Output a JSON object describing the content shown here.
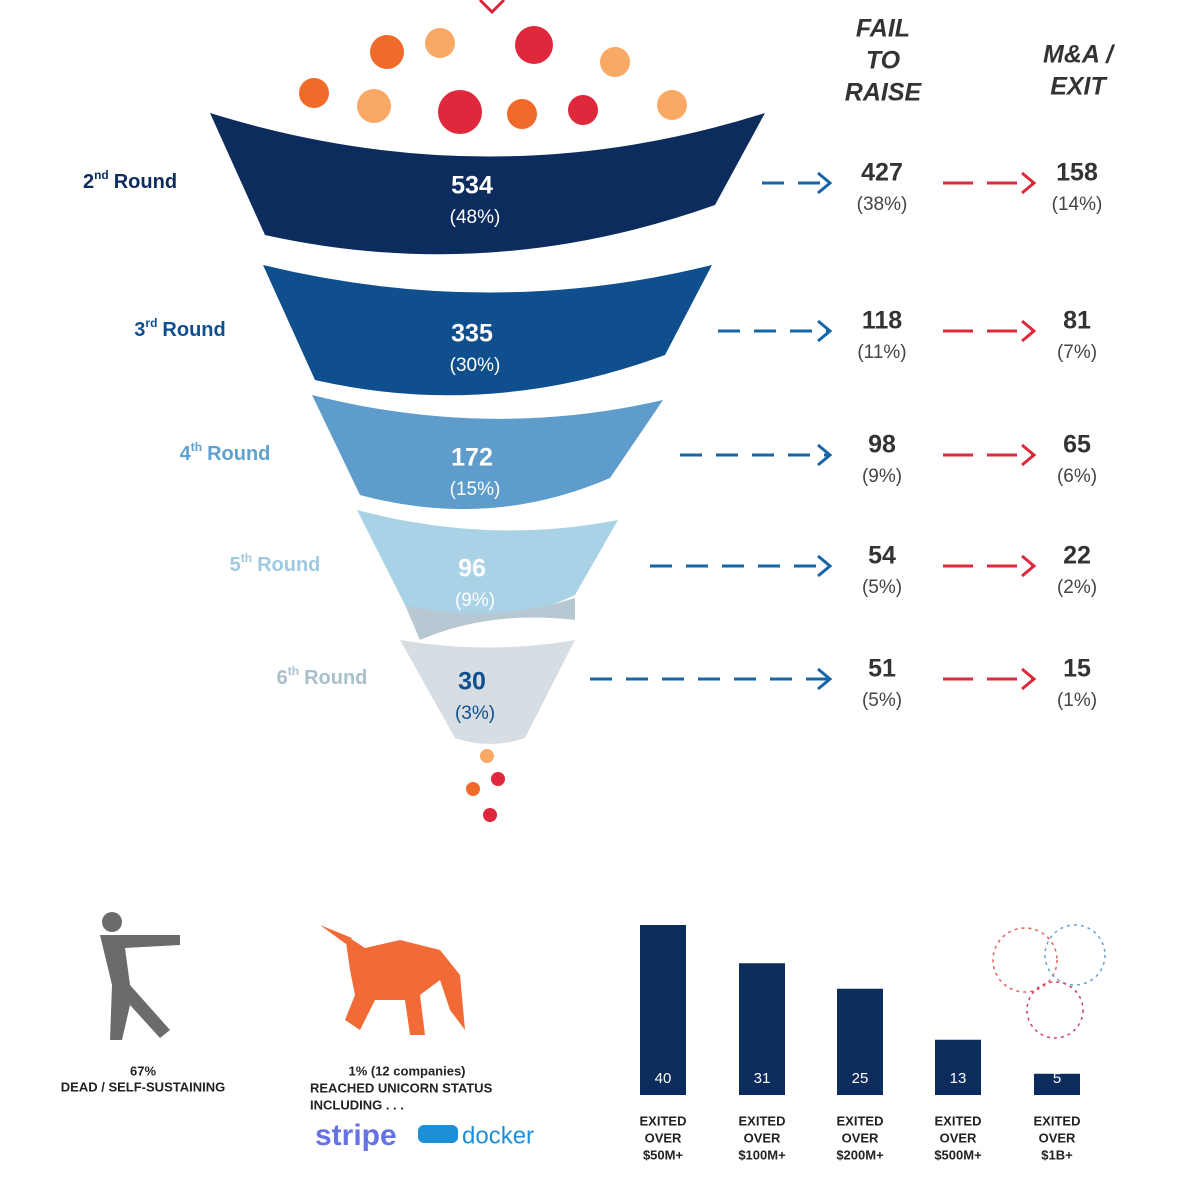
{
  "funnel": {
    "headers": {
      "fail": [
        "FAIL",
        "TO",
        "RAISE"
      ],
      "exit": [
        "M&A /",
        "EXIT"
      ]
    },
    "rows": [
      {
        "ordinal": "2",
        "suffix": "nd",
        "word": "Round",
        "count": 534,
        "share": "(48%)",
        "fail_count": 427,
        "fail_share": "(38%)",
        "exit_count": 158,
        "exit_share": "(14%)"
      },
      {
        "ordinal": "3",
        "suffix": "rd",
        "word": "Round",
        "count": 335,
        "share": "(30%)",
        "fail_count": 118,
        "fail_share": "(11%)",
        "exit_count": 81,
        "exit_share": "(7%)"
      },
      {
        "ordinal": "4",
        "suffix": "th",
        "word": "Round",
        "count": 172,
        "share": "(15%)",
        "fail_count": 98,
        "fail_share": "(9%)",
        "exit_count": 65,
        "exit_share": "(6%)"
      },
      {
        "ordinal": "5",
        "suffix": "th",
        "word": "Round",
        "count": 96,
        "share": "(9%)",
        "fail_count": 54,
        "fail_share": "(5%)",
        "exit_count": 22,
        "exit_share": "(2%)"
      },
      {
        "ordinal": "6",
        "suffix": "th",
        "word": "Round",
        "count": 30,
        "share": "(3%)",
        "fail_count": 51,
        "fail_share": "(5%)",
        "exit_count": 15,
        "exit_share": "(1%)"
      }
    ]
  },
  "outcomes": {
    "dead": {
      "share": "67%",
      "label": "DEAD / SELF-SUSTAINING"
    },
    "unicorn": {
      "lines": [
        "1%  (12 companies)",
        "REACHED UNICORN STATUS",
        "INCLUDING . . ."
      ],
      "logos": [
        "stripe",
        "docker"
      ]
    }
  },
  "exits": {
    "bars": [
      {
        "value": 40,
        "label": [
          "EXITED",
          "OVER",
          "$50M+"
        ]
      },
      {
        "value": 31,
        "label": [
          "EXITED",
          "OVER",
          "$100M+"
        ]
      },
      {
        "value": 25,
        "label": [
          "EXITED",
          "OVER",
          "$200M+"
        ]
      },
      {
        "value": 13,
        "label": [
          "EXITED",
          "OVER",
          "$500M+"
        ]
      },
      {
        "value": 5,
        "label": [
          "EXITED",
          "OVER",
          "$1B+"
        ]
      }
    ]
  }
}
